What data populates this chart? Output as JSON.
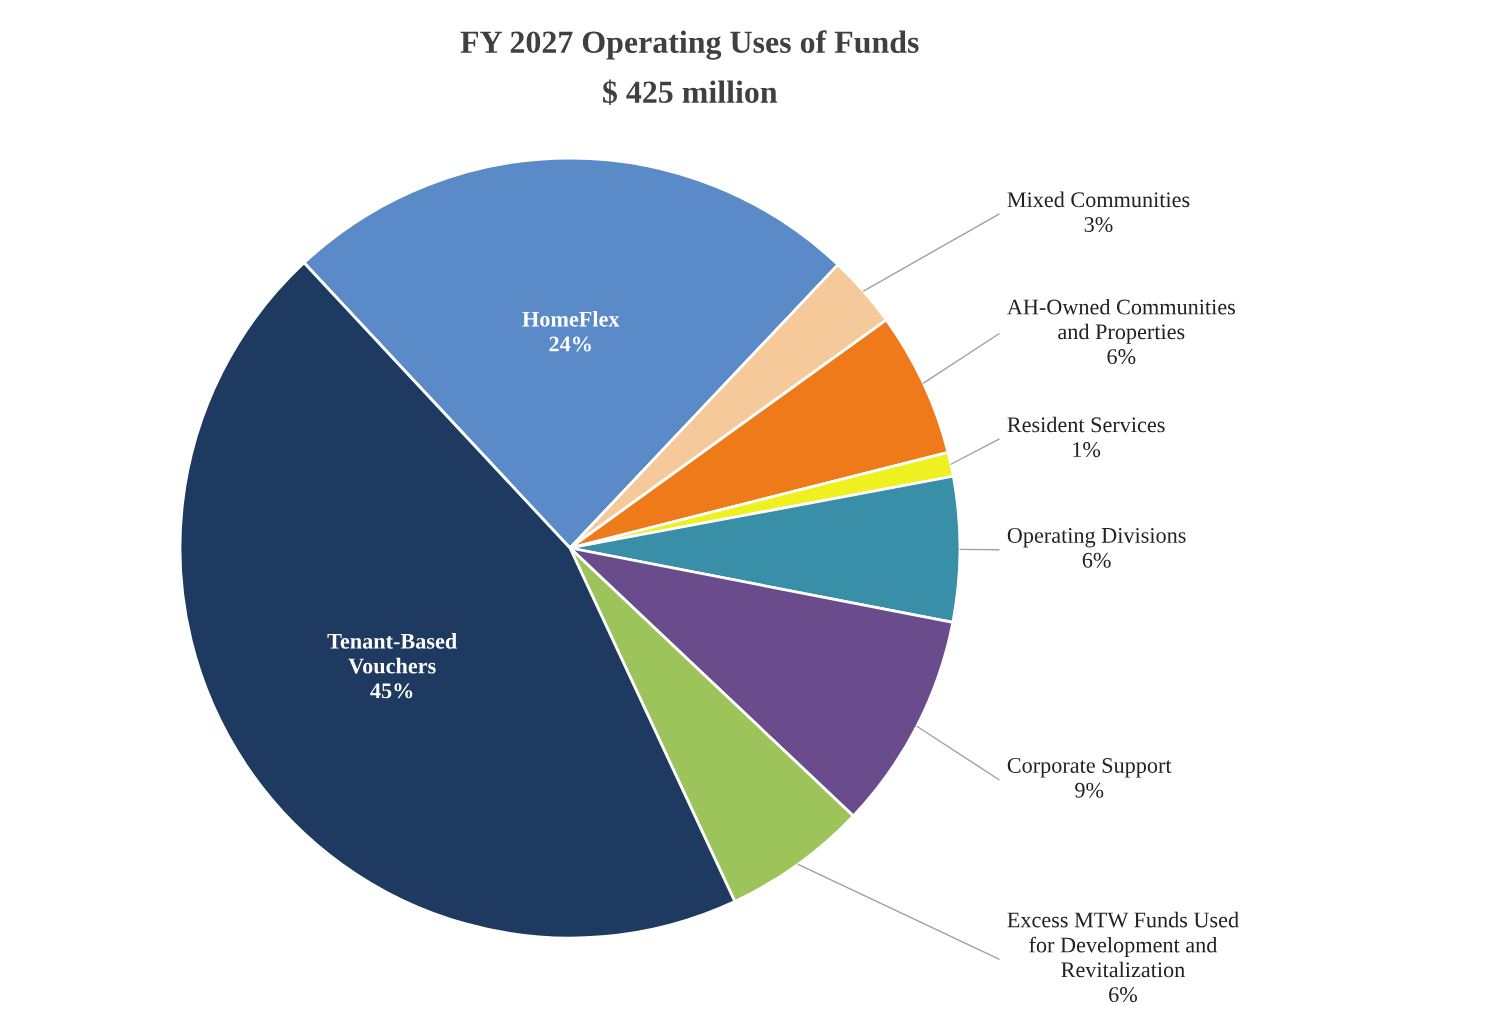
{
  "chart_data": {
    "type": "pie",
    "title": "FY 2027 Operating Uses of Funds",
    "subtitle": "$ 425 million",
    "categories": [
      "HomeFlex",
      "Mixed Communities",
      "AH-Owned Communities\nand Properties",
      "Resident Services",
      "Operating Divisions",
      "Corporate Support",
      "Excess MTW Funds Used\nfor Development and\nRevitalization",
      "Tenant-Based\nVouchers"
    ],
    "values": [
      24,
      3,
      6,
      1,
      6,
      9,
      6,
      45
    ],
    "value_labels": [
      "24%",
      "3%",
      "6%",
      "1%",
      "6%",
      "9%",
      "6%",
      "45%"
    ],
    "colors": [
      "#5a8ac8",
      "#f5c99a",
      "#ee7a1a",
      "#eef020",
      "#3a8fa8",
      "#6a4c8c",
      "#9dc45a",
      "#1f3a60"
    ],
    "legend": false
  }
}
